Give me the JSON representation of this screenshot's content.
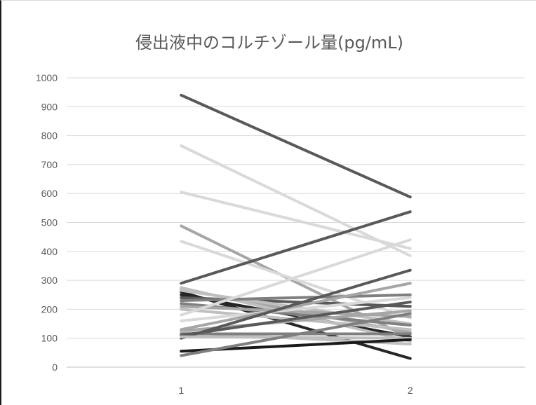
{
  "chart_data": {
    "type": "line",
    "title": "侵出液中のコルチゾール量(pg/mL)",
    "xlabel": "",
    "ylabel": "",
    "categories": [
      "1",
      "2"
    ],
    "ylim": [
      0,
      1000
    ],
    "yticks": [
      "0",
      "100",
      "200",
      "300",
      "400",
      "500",
      "600",
      "700",
      "800",
      "900",
      "1000"
    ],
    "grid": true,
    "legend": "none",
    "series": [
      {
        "values": [
          940,
          588
        ],
        "color": "#595959"
      },
      {
        "values": [
          765,
          385
        ],
        "color": "#d9d9d9"
      },
      {
        "values": [
          605,
          410
        ],
        "color": "#d9d9d9"
      },
      {
        "values": [
          488,
          100
        ],
        "color": "#a6a6a6"
      },
      {
        "values": [
          435,
          170
        ],
        "color": "#d9d9d9"
      },
      {
        "values": [
          290,
          537
        ],
        "color": "#595959"
      },
      {
        "values": [
          260,
          30
        ],
        "color": "#262626"
      },
      {
        "values": [
          250,
          105
        ],
        "color": "#262626"
      },
      {
        "values": [
          240,
          210
        ],
        "color": "#595959"
      },
      {
        "values": [
          270,
          120
        ],
        "color": "#a6a6a6"
      },
      {
        "values": [
          275,
          90
        ],
        "color": "#bfbfbf"
      },
      {
        "values": [
          265,
          150
        ],
        "color": "#bfbfbf"
      },
      {
        "values": [
          230,
          250
        ],
        "color": "#7f7f7f"
      },
      {
        "values": [
          220,
          145
        ],
        "color": "#7f7f7f"
      },
      {
        "values": [
          210,
          175
        ],
        "color": "#a6a6a6"
      },
      {
        "values": [
          200,
          130
        ],
        "color": "#bfbfbf"
      },
      {
        "values": [
          180,
          440
        ],
        "color": "#d9d9d9"
      },
      {
        "values": [
          160,
          240
        ],
        "color": "#d9d9d9"
      },
      {
        "values": [
          130,
          290
        ],
        "color": "#a6a6a6"
      },
      {
        "values": [
          125,
          195
        ],
        "color": "#a6a6a6"
      },
      {
        "values": [
          120,
          80
        ],
        "color": "#bfbfbf"
      },
      {
        "values": [
          115,
          115
        ],
        "color": "#7f7f7f"
      },
      {
        "values": [
          110,
          225
        ],
        "color": "#595959"
      },
      {
        "values": [
          100,
          335
        ],
        "color": "#595959"
      },
      {
        "values": [
          105,
          100
        ],
        "color": "#bfbfbf"
      },
      {
        "values": [
          55,
          95
        ],
        "color": "#1a1a1a"
      },
      {
        "values": [
          40,
          185
        ],
        "color": "#7f7f7f"
      }
    ]
  }
}
